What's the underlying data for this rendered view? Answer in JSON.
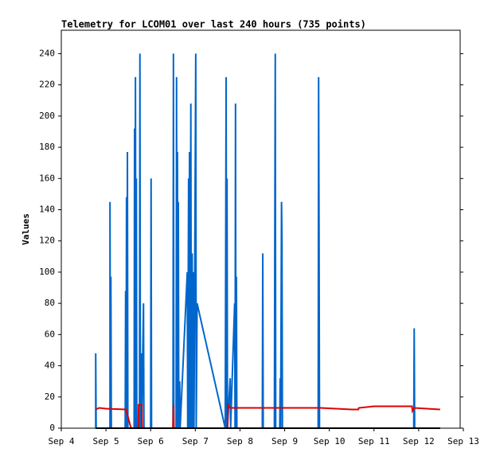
{
  "chart_data": {
    "type": "line",
    "title": "Telemetry for LCOM01 over last 240 hours (735 points)",
    "ylabel": "Values",
    "xlim": [
      4,
      13
    ],
    "xticks": [
      {
        "value": 4,
        "label": "Sep 4"
      },
      {
        "value": 5,
        "label": "Sep 5"
      },
      {
        "value": 6,
        "label": "Sep 6"
      },
      {
        "value": 7,
        "label": "Sep 7"
      },
      {
        "value": 8,
        "label": "Sep 8"
      },
      {
        "value": 9,
        "label": "Sep 9"
      },
      {
        "value": 10,
        "label": "Sep 10"
      },
      {
        "value": 11,
        "label": "Sep 11"
      },
      {
        "value": 12,
        "label": "Sep 12"
      },
      {
        "value": 13,
        "label": "Sep 13"
      }
    ],
    "ylim": [
      0,
      255
    ],
    "yticks": [
      0,
      20,
      40,
      60,
      80,
      100,
      120,
      140,
      160,
      180,
      200,
      220,
      240
    ],
    "series": [
      {
        "color": "#0066cc",
        "x": [
          4.77,
          4.77,
          4.78,
          5.09,
          5.09,
          5.1,
          5.11,
          5.12,
          5.43,
          5.44,
          5.45,
          5.46,
          5.47,
          5.48,
          5.49,
          5.63,
          5.64,
          5.65,
          5.66,
          5.67,
          5.68,
          5.69,
          5.75,
          5.76,
          5.77,
          5.79,
          5.8,
          5.84,
          5.85,
          6.0,
          6.01,
          6.02,
          6.5,
          6.51,
          6.52,
          6.57,
          6.58,
          6.59,
          6.6,
          6.61,
          6.62,
          6.63,
          6.65,
          6.66,
          6.82,
          6.83,
          6.85,
          6.86,
          6.87,
          6.88,
          6.9,
          6.91,
          6.93,
          6.94,
          6.96,
          6.97,
          7.01,
          7.02,
          7.04,
          7.67,
          7.69,
          7.7,
          7.71,
          7.72,
          7.78,
          7.79,
          7.88,
          7.89,
          7.9,
          7.91,
          7.92,
          7.93,
          8.5,
          8.51,
          8.52,
          8.77,
          8.78,
          8.79,
          8.8,
          8.89,
          8.9,
          8.91,
          8.93,
          8.94,
          8.95,
          9.75,
          9.76,
          9.77,
          9.78,
          11.89,
          11.9,
          11.91,
          12.48
        ],
        "values": [
          0,
          48,
          0,
          0,
          145,
          0,
          97,
          0,
          0,
          88,
          0,
          148,
          0,
          177,
          0,
          0,
          192,
          0,
          225,
          0,
          160,
          0,
          0,
          240,
          0,
          48,
          0,
          80,
          0,
          0,
          160,
          0,
          0,
          240,
          0,
          0,
          225,
          0,
          177,
          0,
          145,
          0,
          30,
          0,
          100,
          0,
          160,
          0,
          177,
          0,
          208,
          0,
          112,
          0,
          100,
          0,
          240,
          0,
          80,
          0,
          225,
          0,
          160,
          0,
          32,
          0,
          80,
          0,
          208,
          0,
          97,
          0,
          0,
          112,
          0,
          0,
          128,
          240,
          0,
          0,
          32,
          0,
          145,
          120,
          0,
          0,
          225,
          128,
          0,
          0,
          64,
          0,
          0
        ]
      },
      {
        "color": "#dd0000",
        "x": [
          4.77,
          4.85,
          5.0,
          5.45,
          5.55,
          5.58,
          5.72,
          5.73,
          5.8,
          5.81,
          6.5,
          6.51,
          6.52,
          7.72,
          7.73,
          7.78,
          9.8,
          10.5,
          10.65,
          10.66,
          11.0,
          11.85,
          11.86,
          11.9,
          12.48
        ],
        "values": [
          12,
          13,
          12.5,
          12,
          1,
          0,
          0,
          15,
          15,
          0,
          0,
          15,
          0,
          0,
          15,
          13,
          13,
          12,
          12,
          13,
          14,
          14,
          11,
          13,
          12
        ]
      },
      {
        "color": "#000000",
        "x": [
          4.77,
          12.48
        ],
        "values": [
          0,
          0
        ]
      }
    ]
  }
}
